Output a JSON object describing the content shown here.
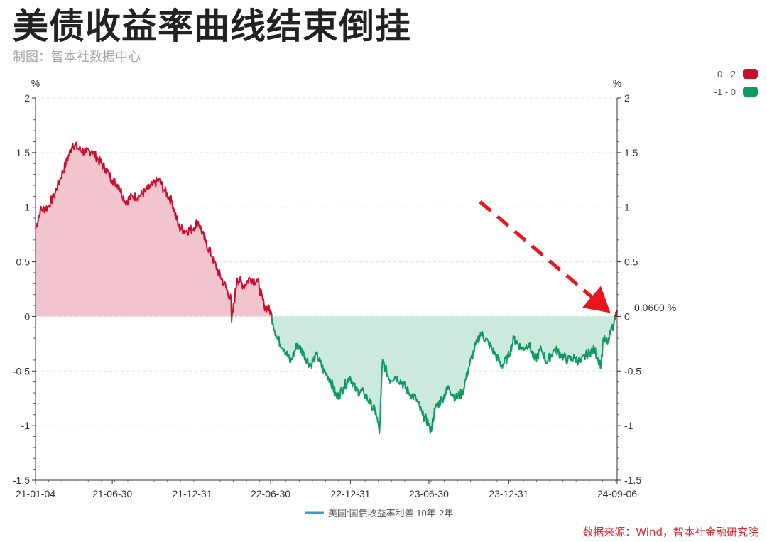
{
  "header": {
    "title": "美债收益率曲线结束倒挂",
    "subtitle": "制图：智本社数据中心"
  },
  "footer": {
    "source": "数据来源：Wind，智本社金融研究院"
  },
  "colors": {
    "positive_line": "#c8102e",
    "positive_fill": "#f2c4ce",
    "negative_line": "#0f9a62",
    "negative_fill": "#cbe9dc",
    "annotation_arrow": "#e8151b",
    "legend_line": "#3a9ad9"
  },
  "chart_data": {
    "type": "area",
    "x_type": "date",
    "unit_left": "%",
    "unit_right": "%",
    "ylim": [
      -1.5,
      2
    ],
    "yticks": [
      2,
      1.5,
      1,
      0.5,
      0,
      -0.5,
      -1,
      -1.5
    ],
    "ytick_labels": [
      "2",
      "1.5",
      "1",
      "0.5",
      "0",
      "-0.5",
      "-1",
      "-1.5"
    ],
    "xlim": [
      "2021-01-04",
      "2024-09-06"
    ],
    "xtick_labels": [
      "21-01-04",
      "21-06-30",
      "21-12-31",
      "22-06-30",
      "22-12-31",
      "23-06-30",
      "23-12-31",
      "24-09-06"
    ],
    "xtick_dates": [
      "2021-01-04",
      "2021-06-30",
      "2021-12-31",
      "2022-06-30",
      "2022-12-31",
      "2023-06-30",
      "2023-12-31",
      "2024-09-06"
    ],
    "grid": true,
    "visual_map": [
      {
        "label": "0 - 2",
        "range": [
          0,
          2
        ],
        "color": "#c8102e"
      },
      {
        "label": "-1 - 0",
        "range": [
          -1,
          0
        ],
        "color": "#0f9a62"
      }
    ],
    "series": [
      {
        "name": "美国:国债收益率利差:10年-2年",
        "x": [
          "2021-01-04",
          "2021-01-15",
          "2021-02-01",
          "2021-02-15",
          "2021-03-01",
          "2021-03-15",
          "2021-03-31",
          "2021-04-15",
          "2021-04-30",
          "2021-05-14",
          "2021-05-28",
          "2021-06-15",
          "2021-06-30",
          "2021-07-15",
          "2021-07-30",
          "2021-08-16",
          "2021-08-31",
          "2021-09-15",
          "2021-09-30",
          "2021-10-15",
          "2021-10-29",
          "2021-11-15",
          "2021-11-30",
          "2021-12-15",
          "2021-12-31",
          "2022-01-14",
          "2022-01-31",
          "2022-02-15",
          "2022-02-28",
          "2022-03-15",
          "2022-03-31",
          "2022-04-01",
          "2022-04-14",
          "2022-04-29",
          "2022-05-13",
          "2022-05-31",
          "2022-06-15",
          "2022-06-30",
          "2022-07-05",
          "2022-07-15",
          "2022-08-01",
          "2022-08-15",
          "2022-08-31",
          "2022-09-15",
          "2022-09-30",
          "2022-10-14",
          "2022-10-31",
          "2022-11-15",
          "2022-11-30",
          "2022-12-15",
          "2022-12-30",
          "2023-01-13",
          "2023-01-31",
          "2023-02-15",
          "2023-02-28",
          "2023-03-08",
          "2023-03-15",
          "2023-03-31",
          "2023-04-14",
          "2023-04-28",
          "2023-05-15",
          "2023-05-31",
          "2023-06-15",
          "2023-06-30",
          "2023-07-03",
          "2023-07-14",
          "2023-07-31",
          "2023-08-15",
          "2023-08-31",
          "2023-09-15",
          "2023-09-29",
          "2023-10-13",
          "2023-10-27",
          "2023-11-15",
          "2023-11-30",
          "2023-12-15",
          "2023-12-29",
          "2024-01-12",
          "2024-01-31",
          "2024-02-15",
          "2024-02-29",
          "2024-03-15",
          "2024-03-28",
          "2024-04-15",
          "2024-04-30",
          "2024-05-15",
          "2024-05-31",
          "2024-06-14",
          "2024-06-28",
          "2024-07-15",
          "2024-07-31",
          "2024-08-05",
          "2024-08-15",
          "2024-08-30",
          "2024-09-06"
        ],
        "values": [
          0.8,
          0.97,
          1.0,
          1.1,
          1.25,
          1.4,
          1.58,
          1.53,
          1.5,
          1.52,
          1.44,
          1.35,
          1.25,
          1.2,
          1.05,
          1.1,
          1.1,
          1.15,
          1.2,
          1.25,
          1.15,
          1.05,
          0.82,
          0.78,
          0.8,
          0.87,
          0.68,
          0.55,
          0.42,
          0.3,
          0.15,
          -0.05,
          0.35,
          0.28,
          0.35,
          0.32,
          0.1,
          0.05,
          -0.05,
          -0.2,
          -0.3,
          -0.42,
          -0.25,
          -0.35,
          -0.45,
          -0.35,
          -0.5,
          -0.58,
          -0.75,
          -0.65,
          -0.55,
          -0.68,
          -0.7,
          -0.8,
          -0.88,
          -1.07,
          -0.4,
          -0.58,
          -0.55,
          -0.6,
          -0.7,
          -0.75,
          -0.9,
          -0.98,
          -1.07,
          -0.85,
          -0.75,
          -0.65,
          -0.75,
          -0.7,
          -0.48,
          -0.3,
          -0.15,
          -0.25,
          -0.35,
          -0.45,
          -0.38,
          -0.2,
          -0.3,
          -0.25,
          -0.4,
          -0.3,
          -0.42,
          -0.3,
          -0.35,
          -0.4,
          -0.38,
          -0.42,
          -0.35,
          -0.3,
          -0.45,
          -0.2,
          -0.25,
          -0.05,
          0.06
        ]
      }
    ],
    "end_label": "0.0600 %",
    "legend": [
      {
        "label": "美国:国债收益率利差:10年-2年"
      }
    ]
  }
}
